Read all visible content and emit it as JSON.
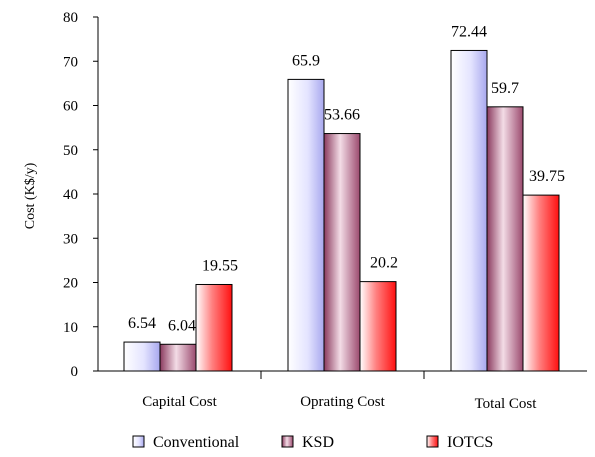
{
  "chart_data": {
    "type": "bar",
    "title": "",
    "xlabel": "",
    "ylabel": "Cost (K$/y)",
    "ylim": [
      0,
      80
    ],
    "yticks": [
      0,
      10,
      20,
      30,
      40,
      50,
      60,
      70,
      80
    ],
    "grid": false,
    "legend_position": "bottom",
    "categories": [
      "Capital Cost",
      "Oprating Cost",
      "Total Cost"
    ],
    "series": [
      {
        "name": "Conventional",
        "values": [
          6.54,
          65.9,
          72.44
        ],
        "labels": [
          "6.54",
          "65.9",
          "72.44"
        ],
        "color": "#c8c8f8"
      },
      {
        "name": "KSD",
        "values": [
          6.04,
          53.66,
          59.7
        ],
        "labels": [
          "6.04",
          "53.66",
          "59.7"
        ],
        "color": "#9b4a6e"
      },
      {
        "name": "IOTCS",
        "values": [
          19.55,
          20.2,
          39.75
        ],
        "labels": [
          "19.55",
          "20.2",
          "39.75"
        ],
        "color": "#ff2020"
      }
    ]
  }
}
